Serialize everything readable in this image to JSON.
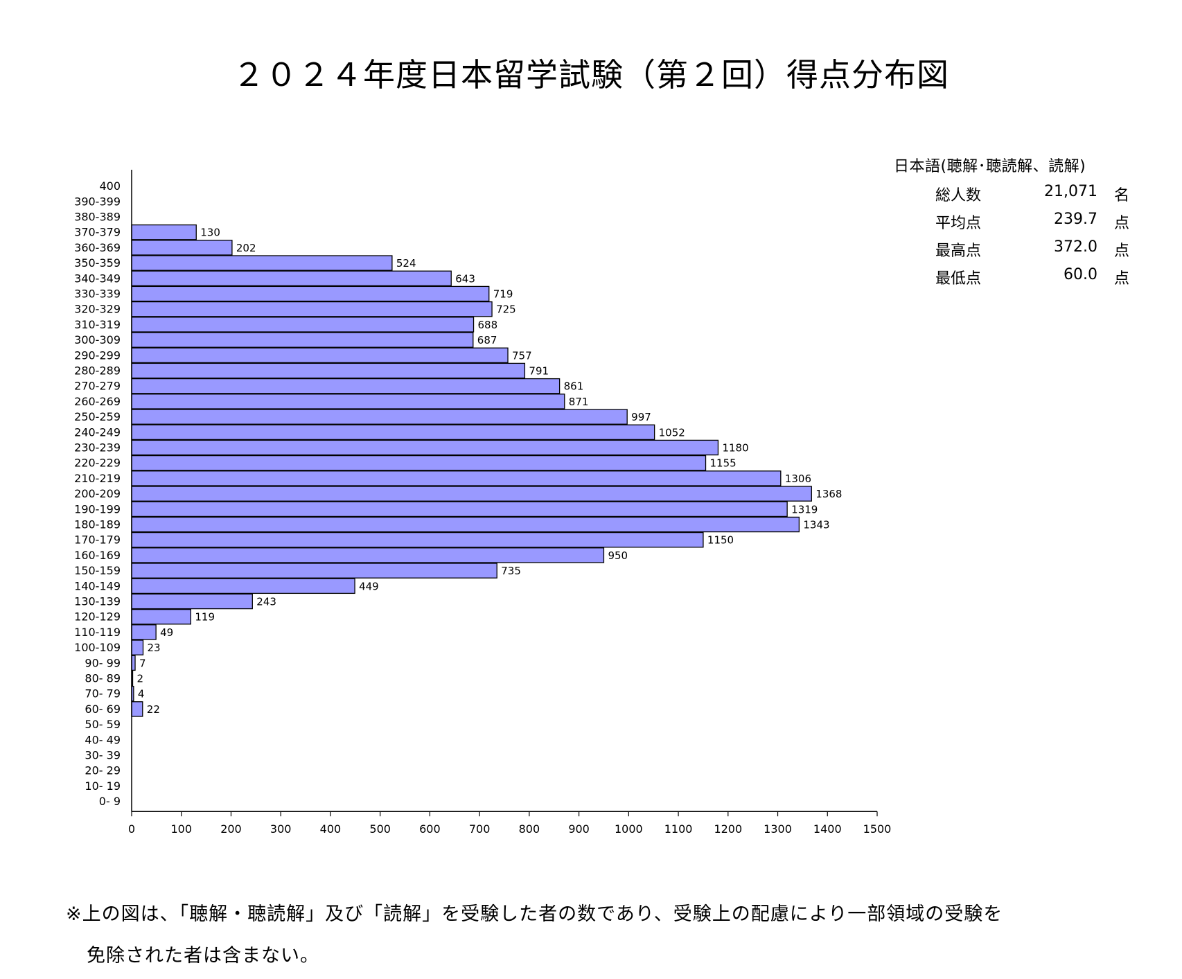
{
  "title": "２０２４年度日本留学試験（第２回）得点分布図",
  "stats": {
    "heading": "日本語(聴解･聴読解、読解)",
    "rows": [
      {
        "label": "総人数",
        "value": "21,071",
        "unit": "名"
      },
      {
        "label": "平均点",
        "value": "239.7",
        "unit": "点"
      },
      {
        "label": "最高点",
        "value": "372.0",
        "unit": "点"
      },
      {
        "label": "最低点",
        "value": "60.0",
        "unit": "点"
      }
    ]
  },
  "note": {
    "line1": "※上の図は、「聴解・聴読解」及び「読解」を受験した者の数であり、受験上の配慮により一部領域の受験を",
    "line2": "免除された者は含まない。"
  },
  "chart_data": {
    "type": "bar",
    "orientation": "horizontal",
    "title": "２０２４年度日本留学試験（第２回）得点分布図",
    "xlabel": "",
    "ylabel": "",
    "xlim": [
      0,
      1500
    ],
    "xticks": [
      0,
      100,
      200,
      300,
      400,
      500,
      600,
      700,
      800,
      900,
      1000,
      1100,
      1200,
      1300,
      1400,
      1500
    ],
    "grid": false,
    "bar_color": "#9999ff",
    "categories": [
      "400",
      "390-399",
      "380-389",
      "370-379",
      "360-369",
      "350-359",
      "340-349",
      "330-339",
      "320-329",
      "310-319",
      "300-309",
      "290-299",
      "280-289",
      "270-279",
      "260-269",
      "250-259",
      "240-249",
      "230-239",
      "220-229",
      "210-219",
      "200-209",
      "190-199",
      "180-189",
      "170-179",
      "160-169",
      "150-159",
      "140-149",
      "130-139",
      "120-129",
      "110-119",
      "100-109",
      "90- 99",
      "80- 89",
      "70- 79",
      "60- 69",
      "50- 59",
      "40- 49",
      "30- 39",
      "20- 29",
      "10- 19",
      "0-  9"
    ],
    "values": [
      null,
      null,
      null,
      130,
      202,
      524,
      643,
      719,
      725,
      688,
      687,
      757,
      791,
      861,
      871,
      997,
      1052,
      1180,
      1155,
      1306,
      1368,
      1319,
      1343,
      1150,
      950,
      735,
      449,
      243,
      119,
      49,
      23,
      7,
      2,
      4,
      22,
      null,
      null,
      null,
      null,
      null,
      null
    ]
  }
}
